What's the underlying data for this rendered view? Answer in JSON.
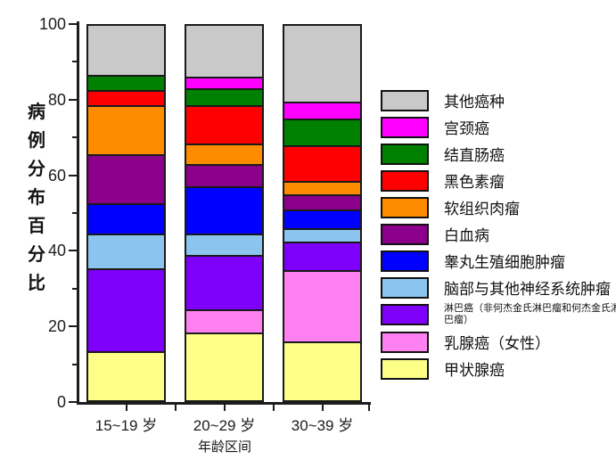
{
  "chart_data": {
    "type": "bar",
    "stacked": true,
    "title": "",
    "xlabel": "年龄区间",
    "ylabel": "病例分布百分比",
    "categories": [
      "15~19 岁",
      "20~29 岁",
      "30~39 岁"
    ],
    "ylim": [
      0,
      100
    ],
    "yticks": [
      0,
      20,
      40,
      60,
      80,
      100
    ],
    "y_minor_ticks": [
      10,
      30,
      50,
      70,
      90
    ],
    "grid": false,
    "legend_position": "right",
    "legend_order": "top-to-bottom is reverse of series (series listed bottom-to-top of stack)",
    "series": [
      {
        "name": "甲状腺癌",
        "color": "#feff87",
        "values": [
          13,
          18,
          15.5
        ]
      },
      {
        "name": "乳腺癌（女性）",
        "color": "#ff80f0",
        "values": [
          0,
          6,
          19
        ]
      },
      {
        "name": "淋巴癌（非何杰金氏淋巴瘤和何杰金氏淋巴瘤）",
        "color": "#7e00fa",
        "values": [
          22,
          14.5,
          7.5
        ],
        "small_legend_text": true
      },
      {
        "name": "脑部与其他神经系统肿瘤",
        "color": "#8ac4ef",
        "values": [
          9,
          5.5,
          3.5
        ]
      },
      {
        "name": "睾丸生殖细胞肿瘤",
        "color": "#0000ff",
        "values": [
          8,
          12.5,
          5
        ]
      },
      {
        "name": "白血病",
        "color": "#8a008a",
        "values": [
          13,
          6,
          4
        ]
      },
      {
        "name": "软组织肉瘤",
        "color": "#ff8c00",
        "values": [
          13,
          5.5,
          3.5
        ]
      },
      {
        "name": "黑色素瘤",
        "color": "#ff0000",
        "values": [
          4,
          10,
          9.5
        ]
      },
      {
        "name": "结直肠癌",
        "color": "#008000",
        "values": [
          4,
          4.5,
          7
        ]
      },
      {
        "name": "宫颈癌",
        "color": "#ff00ff",
        "values": [
          0,
          3,
          4.5
        ]
      },
      {
        "name": "其他癌种",
        "color": "#c9c9c9",
        "values": [
          14,
          14.5,
          21
        ]
      }
    ]
  }
}
